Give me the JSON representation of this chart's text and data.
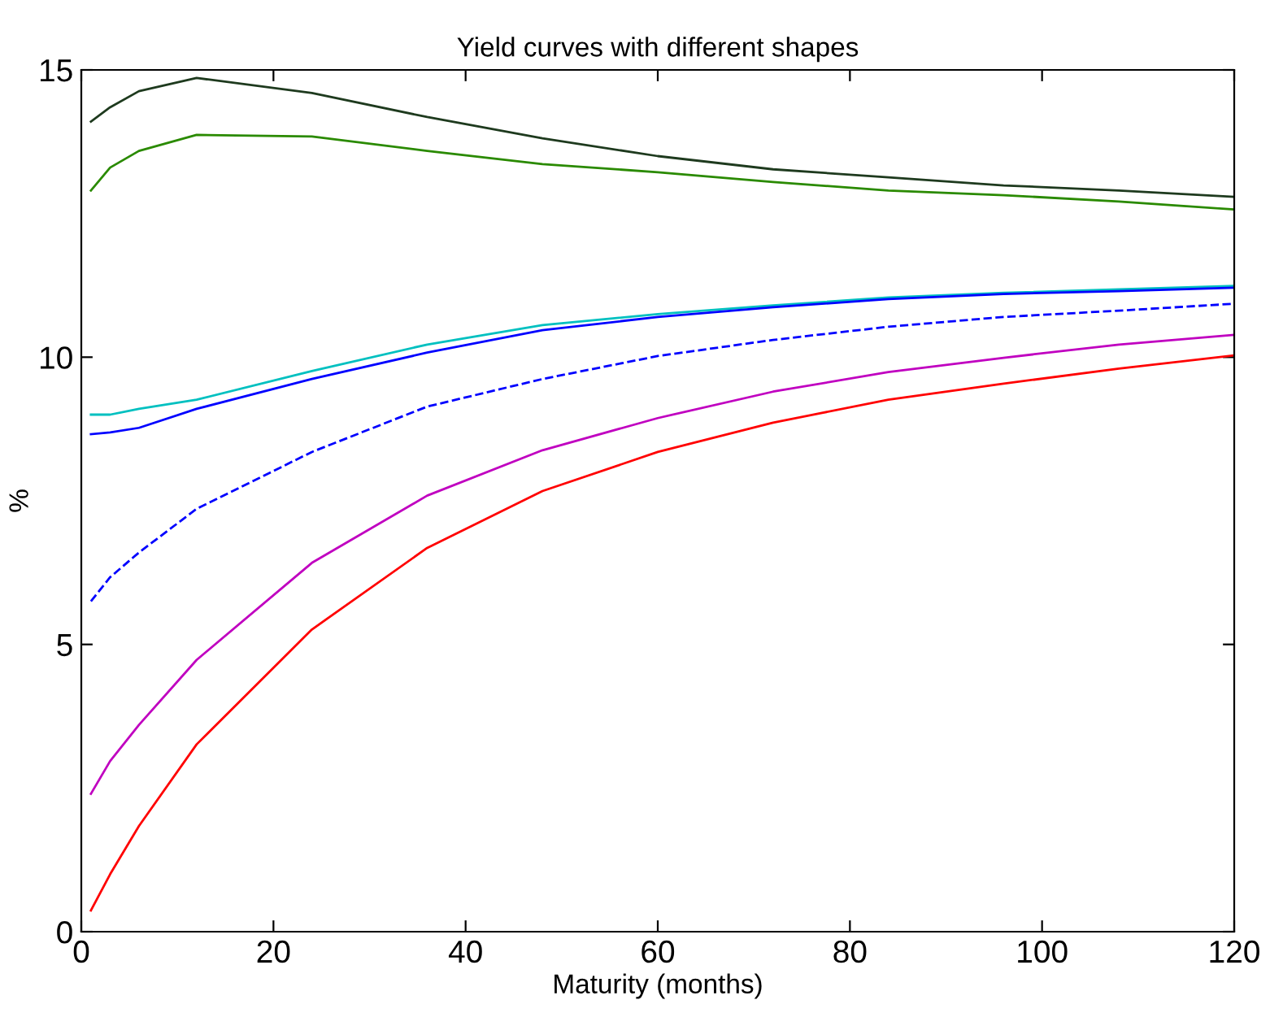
{
  "chart_data": {
    "type": "line",
    "title": "Yield curves with different shapes",
    "xlabel": "Maturity (months)",
    "ylabel": "%",
    "x": [
      1,
      3,
      6,
      12,
      24,
      36,
      48,
      60,
      72,
      84,
      96,
      108,
      120
    ],
    "series": [
      {
        "color": "#1e3a1e",
        "values": [
          14.1,
          14.35,
          14.63,
          14.86,
          14.6,
          14.18,
          13.81,
          13.5,
          13.27,
          13.13,
          12.99,
          12.9,
          12.79
        ]
      },
      {
        "color": "#2a8a00",
        "values": [
          12.9,
          13.3,
          13.59,
          13.87,
          13.84,
          13.59,
          13.36,
          13.22,
          13.05,
          12.9,
          12.82,
          12.71,
          12.57
        ]
      },
      {
        "color": "#00c0c0",
        "values": [
          9.0,
          9.0,
          9.1,
          9.26,
          9.76,
          10.22,
          10.56,
          10.75,
          10.9,
          11.04,
          11.12,
          11.18,
          11.24
        ]
      },
      {
        "color": "#0000ff",
        "values": [
          8.66,
          8.69,
          8.77,
          9.1,
          9.62,
          10.08,
          10.47,
          10.7,
          10.87,
          11.01,
          11.1,
          11.15,
          11.21
        ]
      },
      {
        "color": "#0000ff",
        "line_style": "dashed",
        "values": [
          5.75,
          6.17,
          6.6,
          7.36,
          8.35,
          9.14,
          9.62,
          10.02,
          10.3,
          10.53,
          10.7,
          10.81,
          10.93
        ]
      },
      {
        "color": "#c000c0",
        "values": [
          2.4,
          2.97,
          3.6,
          4.73,
          6.42,
          7.59,
          8.38,
          8.94,
          9.4,
          9.74,
          9.99,
          10.22,
          10.39
        ]
      },
      {
        "color": "#ff0000",
        "values": [
          0.37,
          1.0,
          1.84,
          3.26,
          5.26,
          6.68,
          7.67,
          8.35,
          8.86,
          9.26,
          9.54,
          9.8,
          10.03
        ]
      }
    ],
    "xlim": [
      0,
      120
    ],
    "ylim": [
      0,
      15
    ],
    "xticks": [
      0,
      20,
      40,
      60,
      80,
      100,
      120
    ],
    "yticks": [
      0,
      5,
      10,
      15
    ],
    "grid": false,
    "marker": "none",
    "line_style": "solid"
  }
}
